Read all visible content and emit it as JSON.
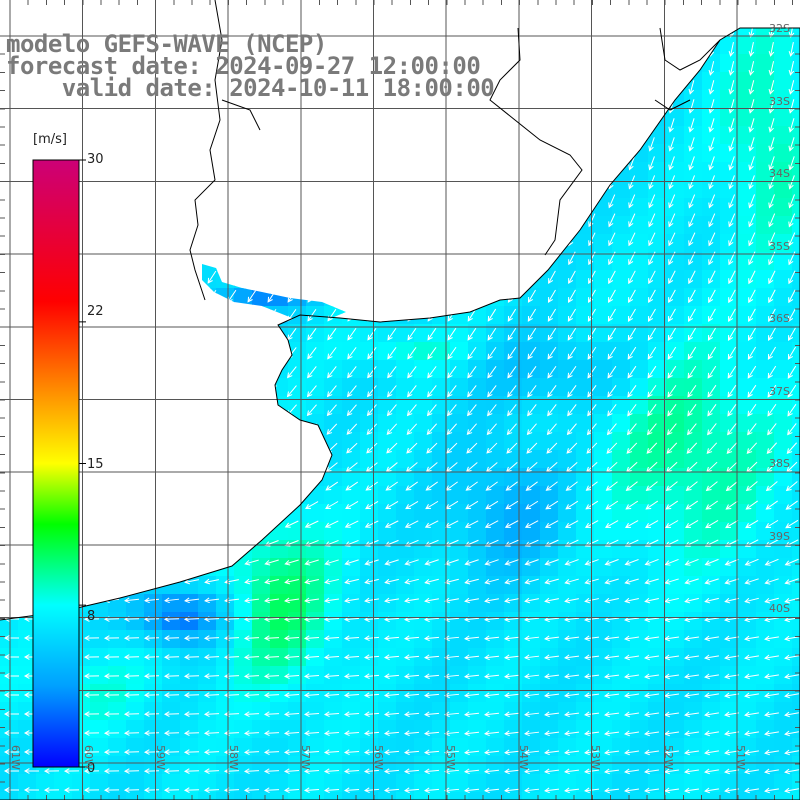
{
  "title": {
    "line1": "modelo GEFS-WAVE (NCEP)",
    "line2": "forecast date: 2024-09-27 12:00:00",
    "line3": "    valid date: 2024-10-11 18:00:00"
  },
  "colorbar": {
    "unit": "[m/s]",
    "ticks": [
      "30",
      "22",
      "15",
      "8",
      "0"
    ],
    "tick_values": [
      30,
      22,
      15,
      8,
      0
    ],
    "min": 0,
    "max": 30,
    "colors": [
      "#0000ff",
      "#00a0ff",
      "#00ffff",
      "#00ff00",
      "#ffff00",
      "#ff8000",
      "#ff0000",
      "#cc0077"
    ]
  },
  "map": {
    "lat_labels": [
      "32S",
      "33S",
      "34S",
      "35S",
      "36S",
      "37S",
      "38S",
      "39S",
      "40S"
    ],
    "lon_labels": [
      "61W",
      "60W",
      "59W",
      "58W",
      "57W",
      "56W",
      "55W",
      "54W",
      "53W",
      "52W",
      "51W"
    ],
    "land_color": "#ffffff",
    "grid_color": "#555555",
    "arrow_color": "#ffffff"
  }
}
